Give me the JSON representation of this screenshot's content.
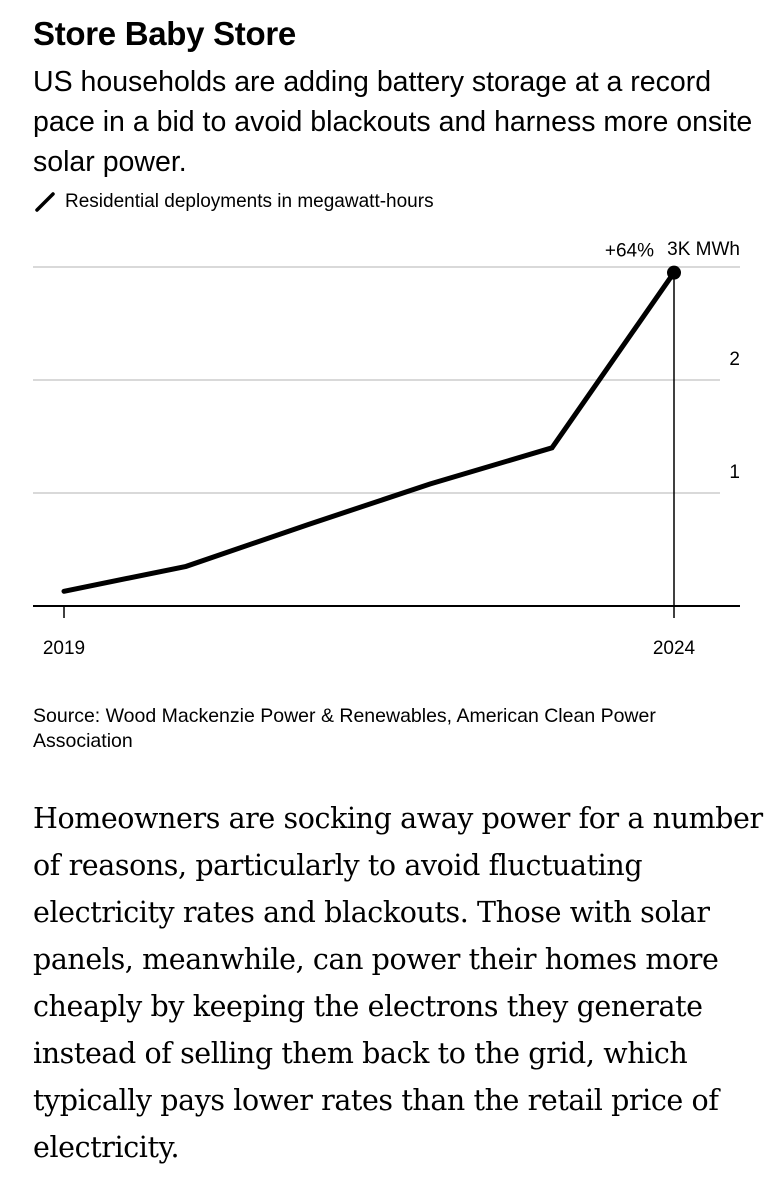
{
  "title": "Store Baby Store",
  "subtitle": "US households are adding battery storage at a record pace in a bid to avoid blackouts and harness more onsite solar power.",
  "chart_data": {
    "type": "line",
    "series": [
      {
        "name": "Residential deployments in megawatt-hours",
        "x": [
          2019,
          2020,
          2021,
          2022,
          2023,
          2024
        ],
        "values": [
          0.13,
          0.35,
          0.72,
          1.08,
          1.4,
          2.95
        ]
      }
    ],
    "ylim": [
      0,
      3
    ],
    "xlim": [
      2019,
      2024
    ],
    "x_tick_labels": [
      "2019",
      "2024"
    ],
    "y_tick_labels": [
      "1",
      "2",
      "3K MWh"
    ],
    "y_ticks": [
      1,
      2,
      3
    ],
    "grid": true,
    "legend": "top-left",
    "annotation": "+64%",
    "line_color": "#000000",
    "grid_color": "#d9d9d9"
  },
  "source": "Source: Wood Mackenzie Power & Renewables, American Clean Power Association",
  "body": "Homeowners are socking away power for a number of reasons, particularly to avoid fluctuating electricity rates and blackouts. Those with solar panels, meanwhile, can power their homes more cheaply by keeping the electrons they generate instead of selling them back to the grid, which typically pays lower rates than the retail price of electricity."
}
